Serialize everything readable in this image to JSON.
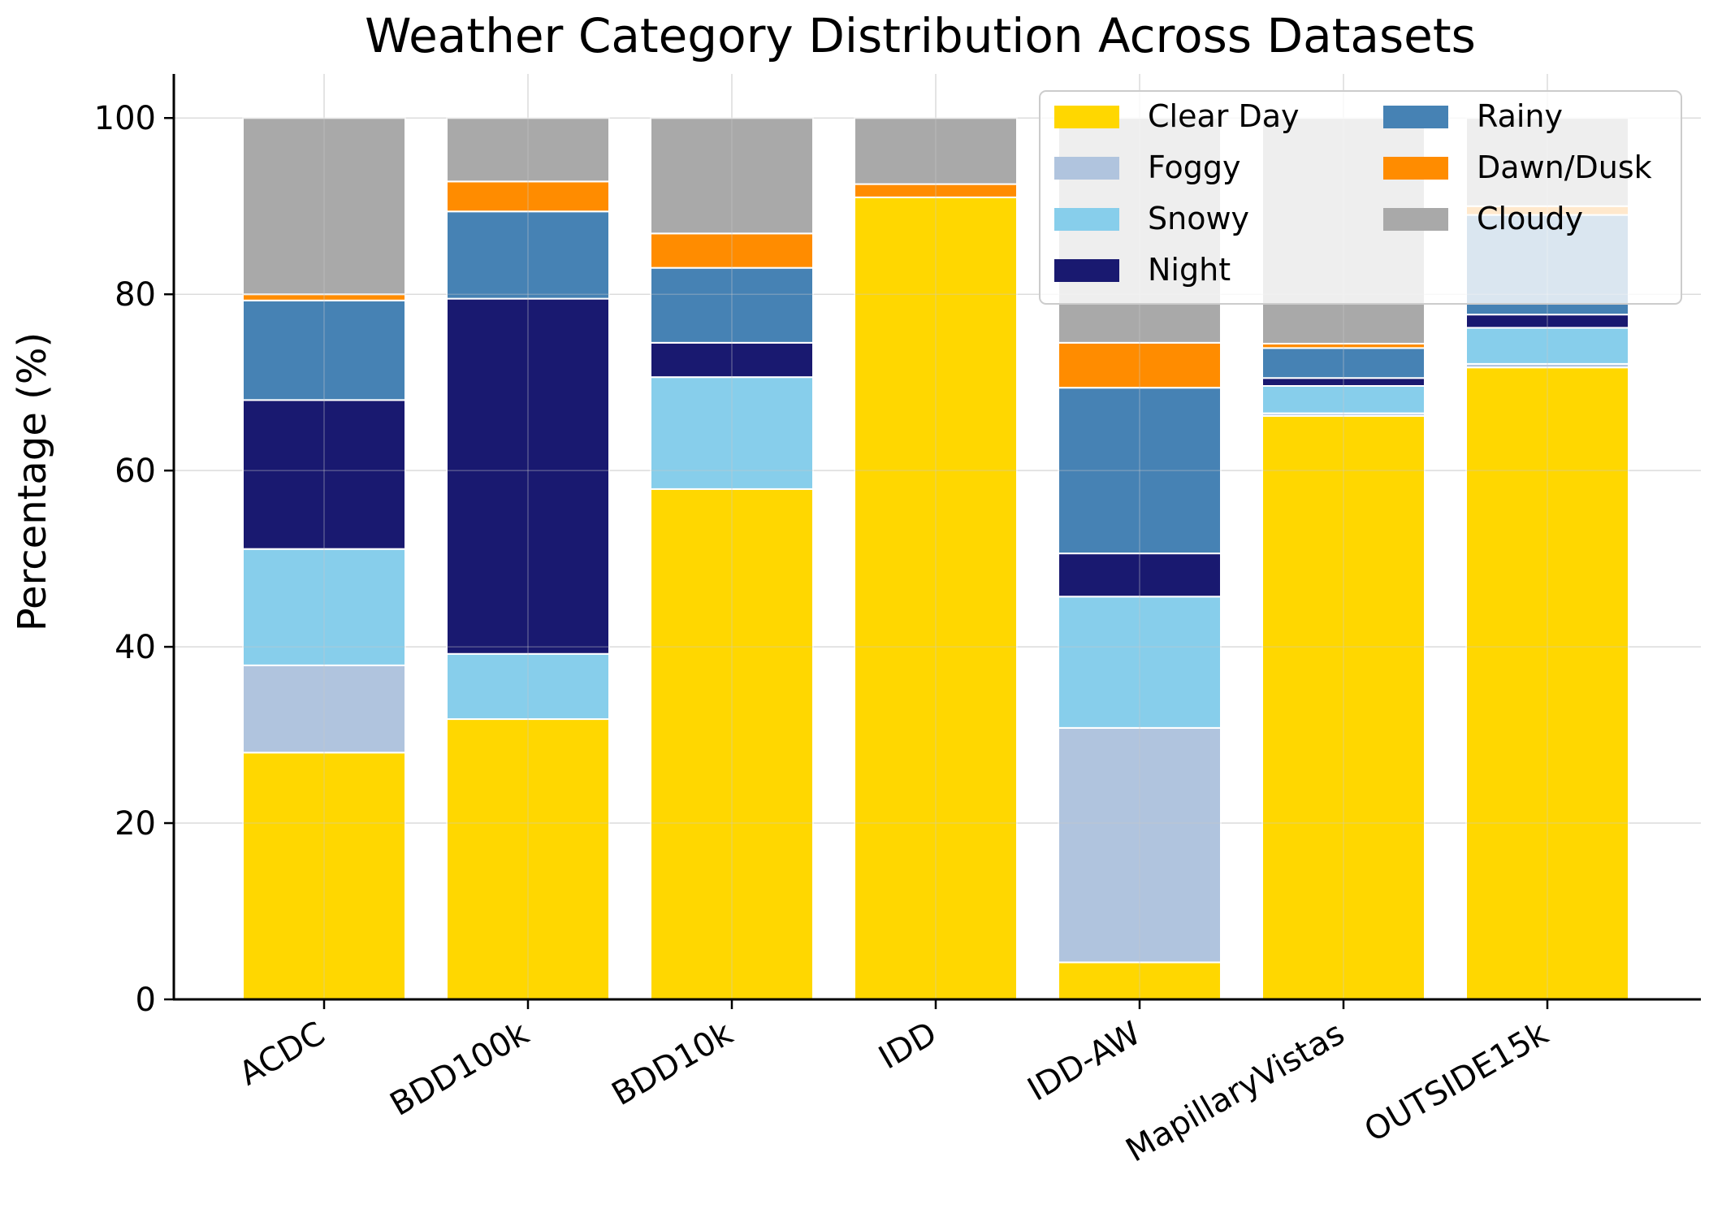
{
  "chart_data": {
    "type": "bar",
    "stacked": true,
    "title": "Weather Category Distribution Across Datasets",
    "xlabel": "",
    "ylabel": "Percentage (%)",
    "ylim": [
      0,
      105
    ],
    "yticks": [
      0,
      20,
      40,
      60,
      80,
      100
    ],
    "ytick_labels": [
      "0",
      "20",
      "40",
      "60",
      "80",
      "100"
    ],
    "grid": true,
    "legend_position": "top-right",
    "legend_columns": 2,
    "categories": [
      "ACDC",
      "BDD100k",
      "BDD10k",
      "IDD",
      "IDD-AW",
      "MapillaryVistas",
      "OUTSIDE15k"
    ],
    "series": [
      {
        "name": "Clear Day",
        "color": "#FFD700",
        "values": [
          28.0,
          31.8,
          57.9,
          91.0,
          4.2,
          66.2,
          71.7
        ]
      },
      {
        "name": "Foggy",
        "color": "#B0C4DE",
        "values": [
          9.9,
          0.0,
          0.0,
          0.0,
          26.6,
          0.3,
          0.4
        ]
      },
      {
        "name": "Snowy",
        "color": "#87CEEB",
        "values": [
          13.2,
          7.4,
          12.7,
          0.0,
          14.9,
          3.1,
          4.1
        ]
      },
      {
        "name": "Night",
        "color": "#191970",
        "values": [
          16.9,
          40.3,
          3.9,
          0.0,
          4.9,
          0.9,
          1.5
        ]
      },
      {
        "name": "Rainy",
        "color": "#4682B4",
        "values": [
          11.3,
          9.9,
          8.5,
          0.0,
          18.8,
          3.4,
          11.3
        ]
      },
      {
        "name": "Dawn/Dusk",
        "color": "#FF8C00",
        "values": [
          0.7,
          3.4,
          3.9,
          1.5,
          5.1,
          0.5,
          1.0
        ]
      },
      {
        "name": "Cloudy",
        "color": "#A9A9A9",
        "values": [
          20.0,
          7.2,
          13.1,
          7.5,
          25.5,
          25.6,
          10.0
        ]
      }
    ]
  }
}
